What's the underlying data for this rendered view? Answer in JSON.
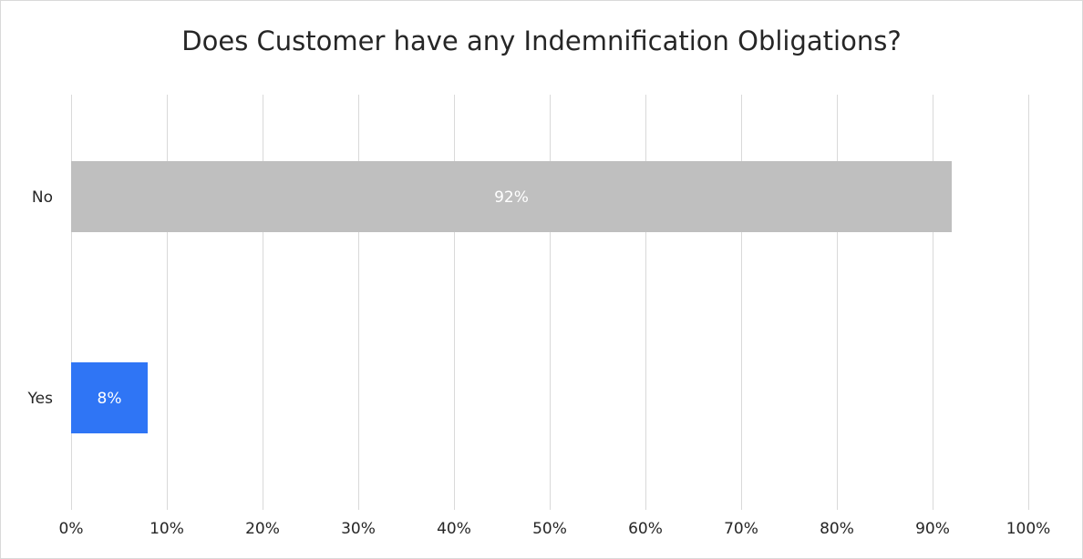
{
  "chart_data": {
    "type": "bar",
    "orientation": "horizontal",
    "title": "Does Customer have any Indemnification Obligations?",
    "categories": [
      "No",
      "Yes"
    ],
    "values": [
      92,
      8
    ],
    "data_labels": [
      "92%",
      "8%"
    ],
    "colors": [
      "#bfbfbf",
      "#2f75f5"
    ],
    "xlim": [
      0,
      100
    ],
    "x_ticks": [
      0,
      10,
      20,
      30,
      40,
      50,
      60,
      70,
      80,
      90,
      100
    ],
    "x_tick_labels": [
      "0%",
      "10%",
      "20%",
      "30%",
      "40%",
      "50%",
      "60%",
      "70%",
      "80%",
      "90%",
      "100%"
    ],
    "grid": true,
    "legend": false,
    "gridline_color": "#d9d9d9"
  }
}
